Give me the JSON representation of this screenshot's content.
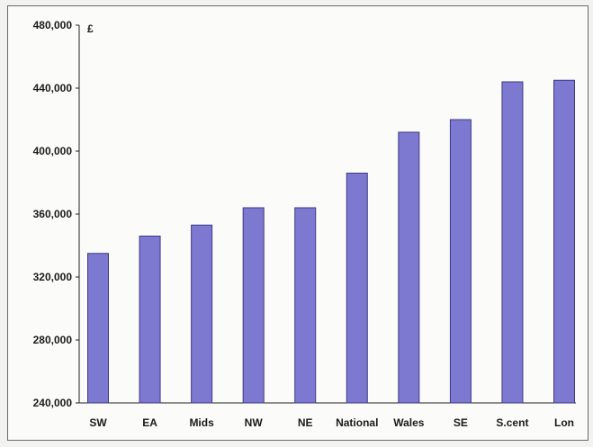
{
  "chart_data": {
    "type": "bar",
    "unit": "£",
    "categories": [
      "SW",
      "EA",
      "Mids",
      "NW",
      "NE",
      "National",
      "Wales",
      "SE",
      "S.cent",
      "Lon"
    ],
    "values": [
      335000,
      346000,
      353000,
      364000,
      364000,
      386000,
      412000,
      420000,
      444000,
      445000
    ],
    "ylim": [
      240000,
      480000
    ],
    "yticks": [
      "240,000",
      "280,000",
      "320,000",
      "360,000",
      "400,000",
      "440,000",
      "480,000"
    ],
    "ytick_values": [
      240000,
      280000,
      320000,
      360000,
      400000,
      440000,
      480000
    ],
    "bar_color": "#7d78d0",
    "bar_edge_color": "#3d3a85",
    "grid": false,
    "legend": "none"
  }
}
